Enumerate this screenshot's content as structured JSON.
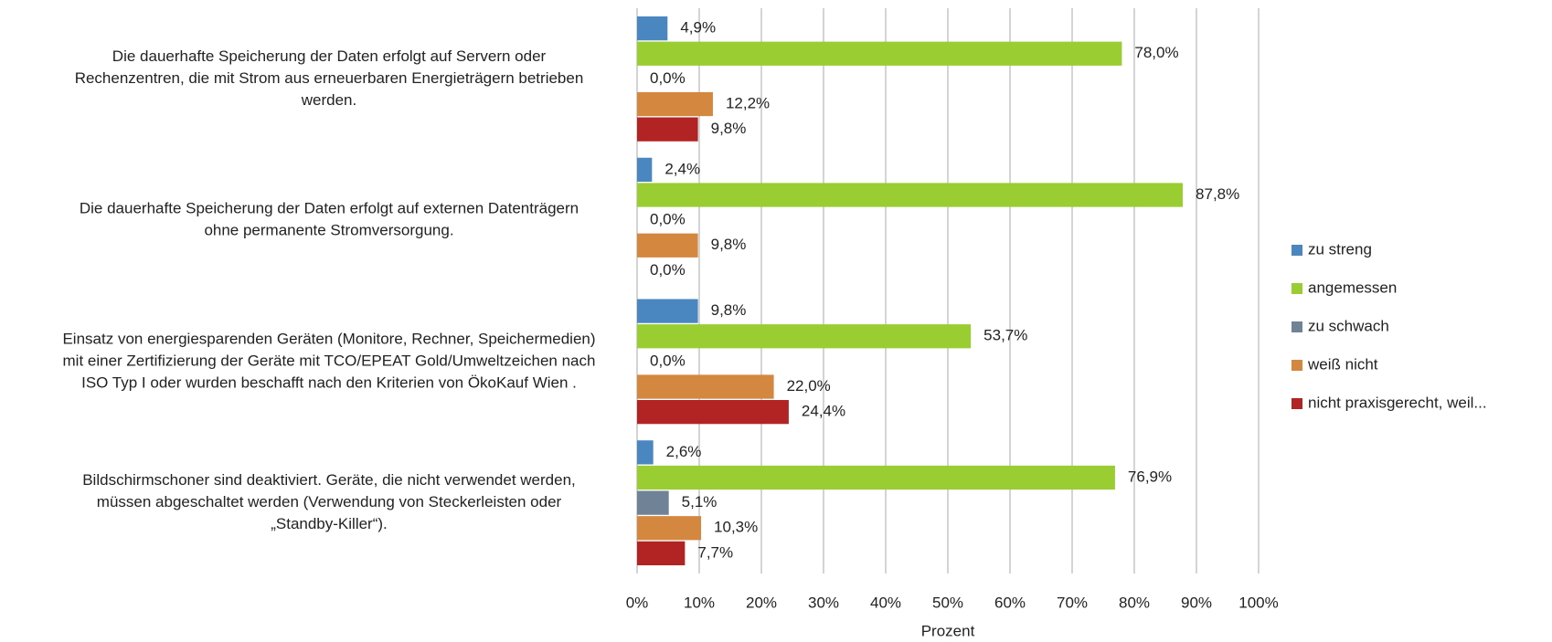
{
  "chart_data": {
    "type": "hbar",
    "categories": [
      [
        "Die dauerhafte Speicherung der Daten erfolgt auf Servern oder",
        "Rechenzentren, die mit Strom aus erneuerbaren Energieträgern betrieben",
        "werden."
      ],
      [
        "Die dauerhafte Speicherung der Daten erfolgt auf externen Datenträgern",
        "ohne permanente Stromversorgung."
      ],
      [
        "Einsatz von energiesparenden Geräten (Monitore, Rechner, Speichermedien)",
        "mit einer Zertifizierung der Geräte mit TCO/EPEAT Gold/Umweltzeichen nach",
        "ISO Typ I oder wurden beschafft nach den Kriterien von ÖkoKauf Wien ."
      ],
      [
        "Bildschirmschoner sind deaktiviert. Geräte, die nicht verwendet werden,",
        "müssen abgeschaltet werden (Verwendung von Steckerleisten oder",
        "„Standby-Killer“)."
      ]
    ],
    "series": [
      {
        "name": "zu streng",
        "color": "#4a86bf",
        "values": [
          4.9,
          2.4,
          9.8,
          2.6
        ],
        "value_labels": [
          "4,9%",
          "2,4%",
          "9,8%",
          "2,6%"
        ]
      },
      {
        "name": "angemessen",
        "color": "#9acd32",
        "values": [
          78.0,
          87.8,
          53.7,
          76.9
        ],
        "value_labels": [
          "78,0%",
          "87,8%",
          "53,7%",
          "76,9%"
        ]
      },
      {
        "name": "zu schwach",
        "color": "#6f8296",
        "values": [
          0.0,
          0.0,
          0.0,
          5.1
        ],
        "value_labels": [
          "0,0%",
          "0,0%",
          "0,0%",
          "5,1%"
        ]
      },
      {
        "name": "weiß nicht",
        "color": "#d4873f",
        "values": [
          12.2,
          9.8,
          22.0,
          10.3
        ],
        "value_labels": [
          "12,2%",
          "9,8%",
          "22,0%",
          "10,3%"
        ]
      },
      {
        "name": "nicht praxisgerecht, weil...",
        "color": "#b22323",
        "values": [
          9.8,
          0.0,
          24.4,
          7.7
        ],
        "value_labels": [
          "9,8%",
          "0,0%",
          "24,4%",
          "7,7%"
        ]
      }
    ],
    "x_label": "Prozent",
    "xlim": [
      0,
      100
    ],
    "xticks": [
      {
        "value": 0,
        "label": "0%"
      },
      {
        "value": 10,
        "label": "10%"
      },
      {
        "value": 20,
        "label": "20%"
      },
      {
        "value": 30,
        "label": "30%"
      },
      {
        "value": 40,
        "label": "40%"
      },
      {
        "value": 50,
        "label": "50%"
      },
      {
        "value": 60,
        "label": "60%"
      },
      {
        "value": 70,
        "label": "70%"
      },
      {
        "value": 80,
        "label": "80%"
      },
      {
        "value": 90,
        "label": "90%"
      },
      {
        "value": 100,
        "label": "100%"
      }
    ],
    "grid": true,
    "legend": "right"
  }
}
